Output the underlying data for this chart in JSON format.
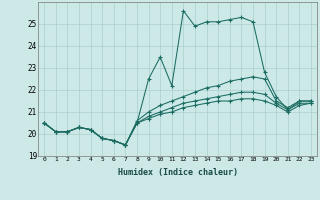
{
  "title": "",
  "xlabel": "Humidex (Indice chaleur)",
  "background_color": "#cce9e8",
  "line_color": "#1a6b60",
  "grid_color": "#aacfcc",
  "xlim": [
    -0.5,
    23.5
  ],
  "ylim": [
    19,
    26
  ],
  "xticks": [
    0,
    1,
    2,
    3,
    4,
    5,
    6,
    7,
    8,
    9,
    10,
    11,
    12,
    13,
    14,
    15,
    16,
    17,
    18,
    19,
    20,
    21,
    22,
    23
  ],
  "yticks": [
    19,
    20,
    21,
    22,
    23,
    24,
    25
  ],
  "series": [
    [
      20.5,
      20.1,
      20.1,
      20.3,
      20.2,
      19.8,
      19.7,
      19.5,
      20.5,
      22.5,
      23.5,
      22.2,
      25.6,
      24.9,
      25.1,
      25.1,
      25.2,
      25.3,
      25.1,
      22.8,
      21.7,
      21.1,
      21.5,
      21.5
    ],
    [
      20.5,
      20.1,
      20.1,
      20.3,
      20.2,
      19.8,
      19.7,
      19.5,
      20.6,
      21.0,
      21.3,
      21.5,
      21.7,
      21.9,
      22.1,
      22.2,
      22.4,
      22.5,
      22.6,
      22.5,
      21.5,
      21.2,
      21.5,
      21.5
    ],
    [
      20.5,
      20.1,
      20.1,
      20.3,
      20.2,
      19.8,
      19.7,
      19.5,
      20.5,
      20.8,
      21.0,
      21.2,
      21.4,
      21.5,
      21.6,
      21.7,
      21.8,
      21.9,
      21.9,
      21.8,
      21.4,
      21.1,
      21.4,
      21.4
    ],
    [
      20.5,
      20.1,
      20.1,
      20.3,
      20.2,
      19.8,
      19.7,
      19.5,
      20.5,
      20.7,
      20.9,
      21.0,
      21.2,
      21.3,
      21.4,
      21.5,
      21.5,
      21.6,
      21.6,
      21.5,
      21.3,
      21.0,
      21.3,
      21.4
    ]
  ]
}
